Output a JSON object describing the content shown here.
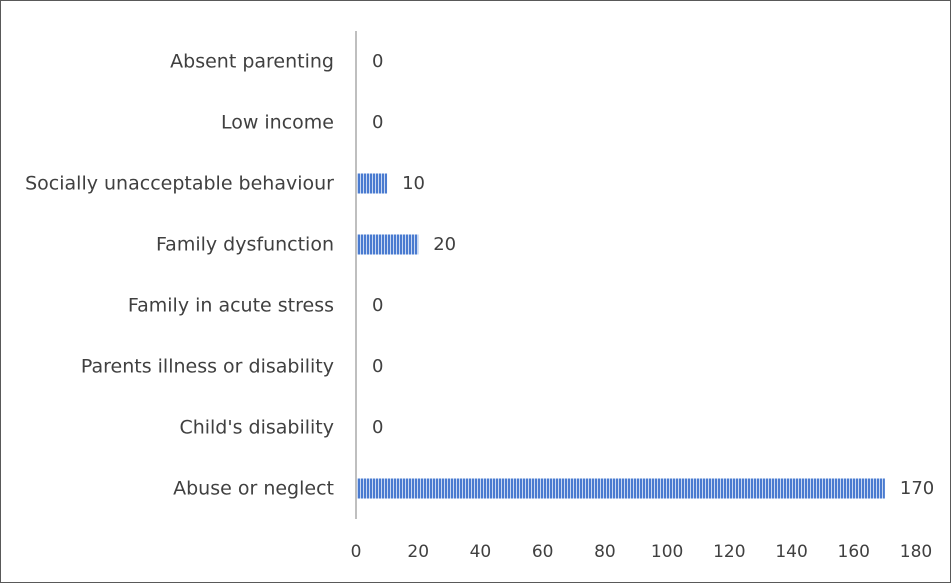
{
  "chart_data": {
    "type": "bar",
    "orientation": "horizontal",
    "categories": [
      "Absent parenting",
      "Low income",
      "Socially unacceptable behaviour",
      "Family dysfunction",
      "Family in acute stress",
      "Parents illness or disability",
      "Child's disability",
      "Abuse or neglect"
    ],
    "values": [
      0,
      0,
      10,
      20,
      0,
      0,
      0,
      170
    ],
    "data_labels": [
      "0",
      "0",
      "10",
      "20",
      "0",
      "0",
      "0",
      "170"
    ],
    "xlim": [
      0,
      180
    ],
    "x_ticks": [
      0,
      20,
      40,
      60,
      80,
      100,
      120,
      140,
      160,
      180
    ],
    "grid": false,
    "legend": "none",
    "bar_color": "#4a7bd0",
    "bar_stripe_color": "#c9d8f2",
    "axis_color": "#bfbfbf",
    "text_color": "#404040"
  }
}
